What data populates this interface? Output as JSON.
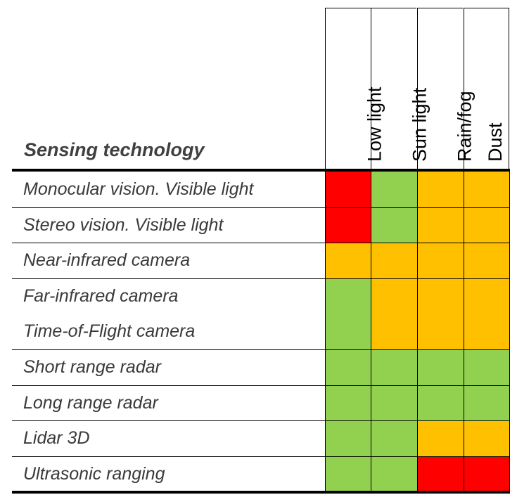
{
  "chart_data": {
    "type": "table",
    "title": "",
    "row_header": "Sensing technology",
    "columns": [
      "Low light",
      "Sun light",
      "Rain/fog",
      "Dust"
    ],
    "rows": [
      {
        "label": "Monocular vision. Visible light",
        "ratings": [
          "poor",
          "good",
          "fair",
          "fair"
        ]
      },
      {
        "label": "Stereo vision. Visible light",
        "ratings": [
          "poor",
          "good",
          "fair",
          "fair"
        ]
      },
      {
        "label": "Near-infrared camera",
        "ratings": [
          "fair",
          "fair",
          "fair",
          "fair"
        ]
      },
      {
        "label": "Far-infrared camera",
        "ratings": [
          "good",
          "fair",
          "fair",
          "fair"
        ]
      },
      {
        "label": "Time-of-Flight camera",
        "ratings": [
          "good",
          "fair",
          "fair",
          "fair"
        ]
      },
      {
        "label": "Short range radar",
        "ratings": [
          "good",
          "good",
          "good",
          "good"
        ]
      },
      {
        "label": "Long range radar",
        "ratings": [
          "good",
          "good",
          "good",
          "good"
        ]
      },
      {
        "label": "Lidar 3D",
        "ratings": [
          "good",
          "good",
          "fair",
          "fair"
        ]
      },
      {
        "label": "Ultrasonic ranging",
        "ratings": [
          "good",
          "good",
          "poor",
          "poor"
        ]
      }
    ],
    "rating_colors": {
      "good": "#92d050",
      "fair": "#ffc000",
      "poor": "#ff0000"
    }
  }
}
